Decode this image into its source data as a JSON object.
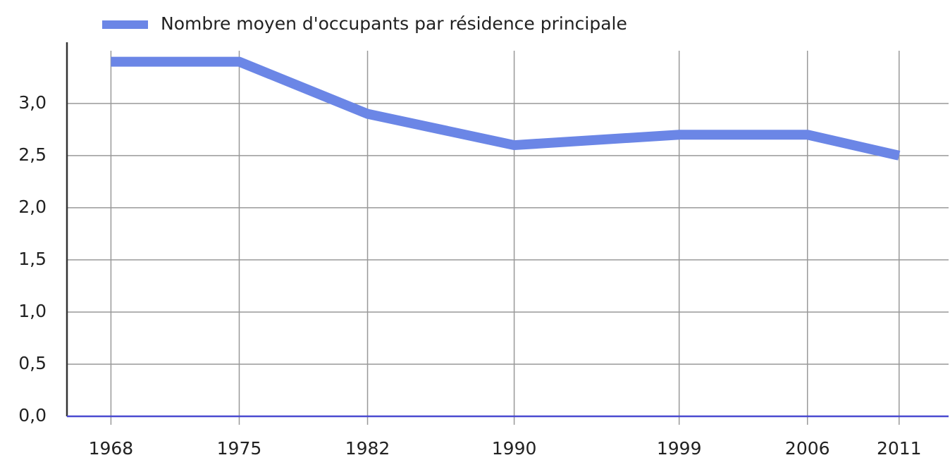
{
  "chart_data": {
    "type": "line",
    "x": [
      1968,
      1975,
      1982,
      1990,
      1999,
      2006,
      2011
    ],
    "series": [
      {
        "name": "Nombre moyen d'occupants par résidence principale",
        "color": "#6b86e6",
        "values": [
          3.4,
          3.4,
          2.9,
          2.6,
          2.7,
          2.7,
          2.5
        ]
      }
    ],
    "xlim": [
      1965.6,
      2013.7
    ],
    "xticks": [
      1968,
      1975,
      1982,
      1990,
      1999,
      2006,
      2011
    ],
    "ylim": [
      0,
      3.6
    ],
    "yticks": [
      {
        "value": 0,
        "label": "0,0"
      },
      {
        "value": 0.5,
        "label": "0,5"
      },
      {
        "value": 1,
        "label": "1,0"
      },
      {
        "value": 1.5,
        "label": "1,5"
      },
      {
        "value": 2,
        "label": "2,0"
      },
      {
        "value": 2.5,
        "label": "2,5"
      },
      {
        "value": 3,
        "label": "3,0"
      }
    ],
    "grid": true,
    "legend": "top"
  }
}
